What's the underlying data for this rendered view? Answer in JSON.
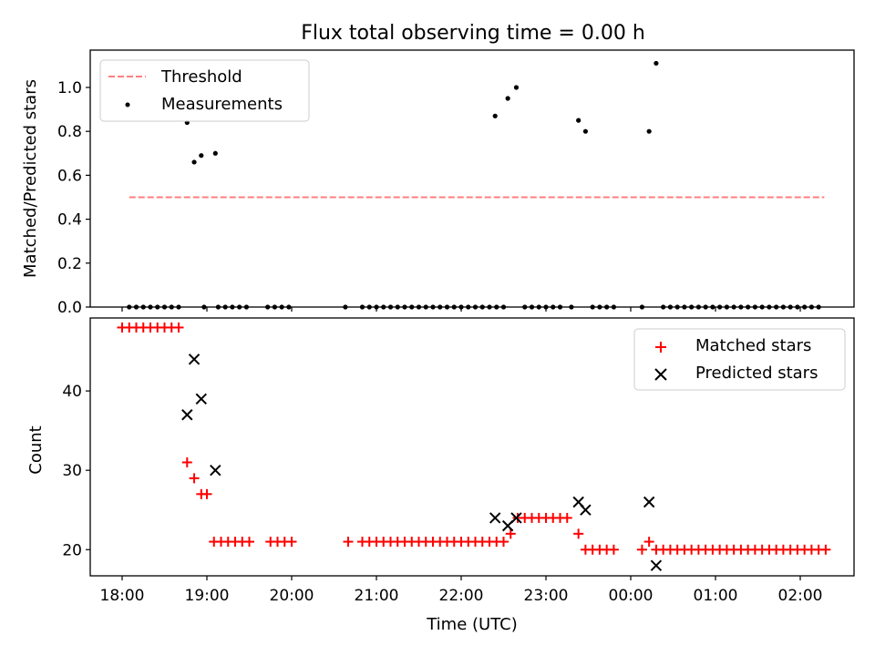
{
  "chart_data": [
    {
      "type": "scatter",
      "title": "Flux total observing time = 0.00 h",
      "xlabel": "",
      "ylabel": "Matched/Predicted stars",
      "ylim": [
        0,
        1.17
      ],
      "yticks": [
        0.0,
        0.2,
        0.4,
        0.6,
        0.8,
        1.0
      ],
      "ytick_labels": [
        "0.0",
        "0.2",
        "0.4",
        "0.6",
        "0.8",
        "1.0"
      ],
      "xticks_shown": false,
      "legend_position": "upper left",
      "legend": [
        "Threshold",
        "Measurements"
      ],
      "threshold": {
        "name": "Threshold",
        "value": 0.5,
        "x_start": "18:05",
        "x_end": "02:17",
        "color": "#ff7f7f",
        "style": "dashed"
      },
      "series": [
        {
          "name": "Measurements",
          "color": "#000000",
          "points": [
            [
              "18:05",
              0
            ],
            [
              "18:10",
              0
            ],
            [
              "18:15",
              0
            ],
            [
              "18:20",
              0
            ],
            [
              "18:25",
              0
            ],
            [
              "18:30",
              0
            ],
            [
              "18:35",
              0
            ],
            [
              "18:40",
              0
            ],
            [
              "18:46",
              0.84
            ],
            [
              "18:51",
              0.66
            ],
            [
              "18:56",
              0.69
            ],
            [
              "19:06",
              0.7
            ],
            [
              "18:58",
              0
            ],
            [
              "19:08",
              0
            ],
            [
              "19:13",
              0
            ],
            [
              "19:18",
              0
            ],
            [
              "19:23",
              0
            ],
            [
              "19:28",
              0
            ],
            [
              "19:43",
              0
            ],
            [
              "19:48",
              0
            ],
            [
              "19:53",
              0
            ],
            [
              "19:58",
              0
            ],
            [
              "20:38",
              0
            ],
            [
              "20:50",
              0
            ],
            [
              "20:55",
              0
            ],
            [
              "21:00",
              0
            ],
            [
              "21:05",
              0
            ],
            [
              "21:10",
              0
            ],
            [
              "21:15",
              0
            ],
            [
              "21:20",
              0
            ],
            [
              "21:25",
              0
            ],
            [
              "21:30",
              0
            ],
            [
              "21:35",
              0
            ],
            [
              "21:40",
              0
            ],
            [
              "21:45",
              0
            ],
            [
              "21:50",
              0
            ],
            [
              "21:55",
              0
            ],
            [
              "22:00",
              0
            ],
            [
              "22:05",
              0
            ],
            [
              "22:10",
              0
            ],
            [
              "22:15",
              0
            ],
            [
              "22:20",
              0
            ],
            [
              "22:25",
              0
            ],
            [
              "22:24",
              0.87
            ],
            [
              "22:33",
              0.95
            ],
            [
              "22:39",
              1.0
            ],
            [
              "22:30",
              0
            ],
            [
              "22:45",
              0
            ],
            [
              "22:50",
              0
            ],
            [
              "22:55",
              0
            ],
            [
              "23:00",
              0
            ],
            [
              "23:05",
              0
            ],
            [
              "23:10",
              0
            ],
            [
              "23:18",
              0
            ],
            [
              "23:23",
              0.85
            ],
            [
              "23:28",
              0.8
            ],
            [
              "23:33",
              0
            ],
            [
              "23:38",
              0
            ],
            [
              "23:43",
              0
            ],
            [
              "23:48",
              0
            ],
            [
              "00:08",
              0
            ],
            [
              "00:13",
              0.8
            ],
            [
              "00:18",
              1.11
            ],
            [
              "00:23",
              0
            ],
            [
              "00:28",
              0
            ],
            [
              "00:33",
              0
            ],
            [
              "00:38",
              0
            ],
            [
              "00:43",
              0
            ],
            [
              "00:48",
              0
            ],
            [
              "00:53",
              0
            ],
            [
              "00:58",
              0
            ],
            [
              "01:03",
              0
            ],
            [
              "01:08",
              0
            ],
            [
              "01:13",
              0
            ],
            [
              "01:18",
              0
            ],
            [
              "01:23",
              0
            ],
            [
              "01:28",
              0
            ],
            [
              "01:33",
              0
            ],
            [
              "01:38",
              0
            ],
            [
              "01:43",
              0
            ],
            [
              "01:48",
              0
            ],
            [
              "01:53",
              0
            ],
            [
              "01:58",
              0
            ],
            [
              "02:03",
              0
            ],
            [
              "02:08",
              0
            ],
            [
              "02:13",
              0
            ]
          ]
        }
      ]
    },
    {
      "type": "scatter",
      "title": "",
      "xlabel": "Time (UTC)",
      "ylabel": "Count",
      "ylim": [
        16.7,
        49.2
      ],
      "yticks": [
        20,
        30,
        40
      ],
      "ytick_labels": [
        "20",
        "30",
        "40"
      ],
      "xticks": [
        "18:00",
        "19:00",
        "20:00",
        "21:00",
        "22:00",
        "23:00",
        "00:00",
        "01:00",
        "02:00"
      ],
      "legend_position": "upper right",
      "legend": [
        "Matched stars",
        "Predicted stars"
      ],
      "series": [
        {
          "name": "Matched stars",
          "marker": "plus",
          "color": "#ff0000",
          "points": [
            [
              "18:00",
              48
            ],
            [
              "18:05",
              48
            ],
            [
              "18:10",
              48
            ],
            [
              "18:15",
              48
            ],
            [
              "18:20",
              48
            ],
            [
              "18:25",
              48
            ],
            [
              "18:30",
              48
            ],
            [
              "18:35",
              48
            ],
            [
              "18:40",
              48
            ],
            [
              "18:46",
              31
            ],
            [
              "18:51",
              29
            ],
            [
              "18:56",
              27
            ],
            [
              "19:00",
              27
            ],
            [
              "19:05",
              21
            ],
            [
              "19:10",
              21
            ],
            [
              "19:15",
              21
            ],
            [
              "19:20",
              21
            ],
            [
              "19:25",
              21
            ],
            [
              "19:30",
              21
            ],
            [
              "19:45",
              21
            ],
            [
              "19:50",
              21
            ],
            [
              "19:55",
              21
            ],
            [
              "20:00",
              21
            ],
            [
              "20:40",
              21
            ],
            [
              "20:50",
              21
            ],
            [
              "20:55",
              21
            ],
            [
              "21:00",
              21
            ],
            [
              "21:05",
              21
            ],
            [
              "21:10",
              21
            ],
            [
              "21:15",
              21
            ],
            [
              "21:20",
              21
            ],
            [
              "21:25",
              21
            ],
            [
              "21:30",
              21
            ],
            [
              "21:35",
              21
            ],
            [
              "21:40",
              21
            ],
            [
              "21:45",
              21
            ],
            [
              "21:50",
              21
            ],
            [
              "21:55",
              21
            ],
            [
              "22:00",
              21
            ],
            [
              "22:05",
              21
            ],
            [
              "22:10",
              21
            ],
            [
              "22:15",
              21
            ],
            [
              "22:20",
              21
            ],
            [
              "22:25",
              21
            ],
            [
              "22:30",
              21
            ],
            [
              "22:35",
              22
            ],
            [
              "22:40",
              24
            ],
            [
              "22:45",
              24
            ],
            [
              "22:50",
              24
            ],
            [
              "22:55",
              24
            ],
            [
              "23:00",
              24
            ],
            [
              "23:05",
              24
            ],
            [
              "23:10",
              24
            ],
            [
              "23:15",
              24
            ],
            [
              "23:23",
              22
            ],
            [
              "23:28",
              20
            ],
            [
              "23:33",
              20
            ],
            [
              "23:38",
              20
            ],
            [
              "23:43",
              20
            ],
            [
              "23:48",
              20
            ],
            [
              "00:08",
              20
            ],
            [
              "00:13",
              21
            ],
            [
              "00:18",
              20
            ],
            [
              "00:23",
              20
            ],
            [
              "00:28",
              20
            ],
            [
              "00:33",
              20
            ],
            [
              "00:38",
              20
            ],
            [
              "00:43",
              20
            ],
            [
              "00:48",
              20
            ],
            [
              "00:53",
              20
            ],
            [
              "00:58",
              20
            ],
            [
              "01:03",
              20
            ],
            [
              "01:08",
              20
            ],
            [
              "01:13",
              20
            ],
            [
              "01:18",
              20
            ],
            [
              "01:23",
              20
            ],
            [
              "01:28",
              20
            ],
            [
              "01:33",
              20
            ],
            [
              "01:38",
              20
            ],
            [
              "01:43",
              20
            ],
            [
              "01:48",
              20
            ],
            [
              "01:53",
              20
            ],
            [
              "01:58",
              20
            ],
            [
              "02:03",
              20
            ],
            [
              "02:08",
              20
            ],
            [
              "02:13",
              20
            ],
            [
              "02:18",
              20
            ]
          ]
        },
        {
          "name": "Predicted stars",
          "marker": "x",
          "color": "#000000",
          "points": [
            [
              "18:46",
              37
            ],
            [
              "18:51",
              44
            ],
            [
              "18:56",
              39
            ],
            [
              "19:06",
              30
            ],
            [
              "22:24",
              24
            ],
            [
              "22:33",
              23
            ],
            [
              "22:39",
              24
            ],
            [
              "23:23",
              26
            ],
            [
              "23:28",
              25
            ],
            [
              "00:13",
              26
            ],
            [
              "00:18",
              18
            ]
          ]
        }
      ]
    }
  ]
}
